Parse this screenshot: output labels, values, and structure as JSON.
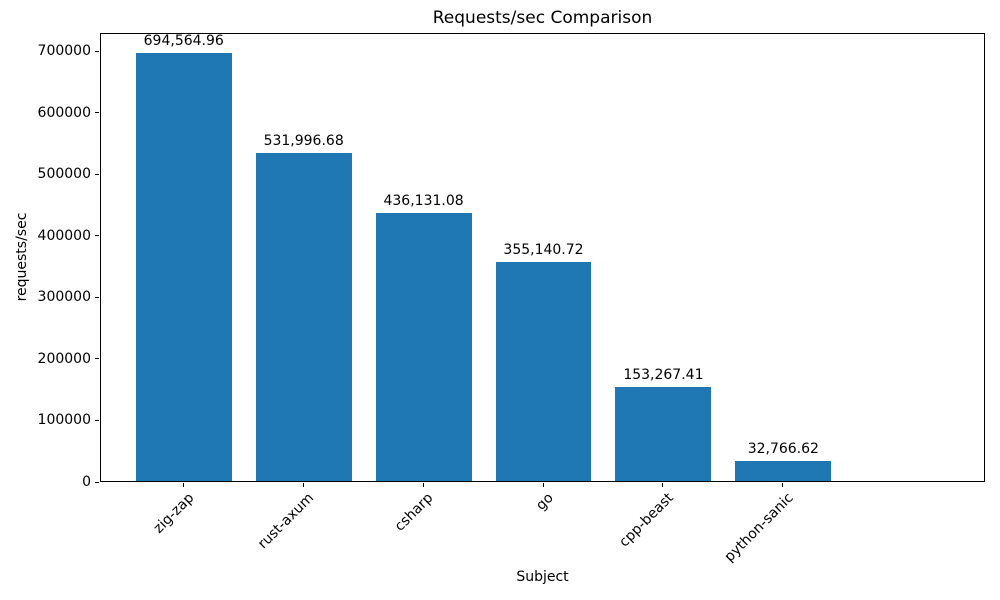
{
  "chart_data": {
    "type": "bar",
    "title": "Requests/sec Comparison",
    "xlabel": "Subject",
    "ylabel": "requests/sec",
    "categories": [
      "zig-zap",
      "rust-axum",
      "csharp",
      "go",
      "cpp-beast",
      "python-sanic"
    ],
    "values": [
      694564.96,
      531996.68,
      436131.08,
      355140.72,
      153267.41,
      32766.62
    ],
    "value_labels": [
      "694,564.96",
      "531,996.68",
      "436,131.08",
      "355,140.72",
      "153,267.41",
      "32,766.62"
    ],
    "ylim": [
      0,
      729293
    ],
    "yticks": [
      0,
      100000,
      200000,
      300000,
      400000,
      500000,
      600000,
      700000
    ],
    "ytick_labels": [
      "0",
      "100000",
      "200000",
      "300000",
      "400000",
      "500000",
      "600000",
      "700000"
    ],
    "bar_color": "#1f77b4",
    "grid": false,
    "legend_position": "none"
  }
}
